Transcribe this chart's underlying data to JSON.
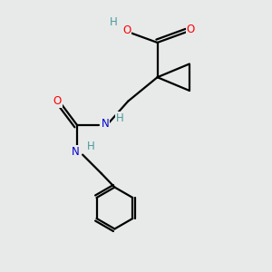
{
  "bg_color": "#e8eaea",
  "bond_color": "#000000",
  "atom_colors": {
    "O": "#ff0000",
    "N": "#0000cd",
    "H": "#4a9a9a"
  },
  "figsize": [
    3.0,
    3.0
  ],
  "dpi": 100,
  "bond_lw": 1.6,
  "font_size": 8.5
}
